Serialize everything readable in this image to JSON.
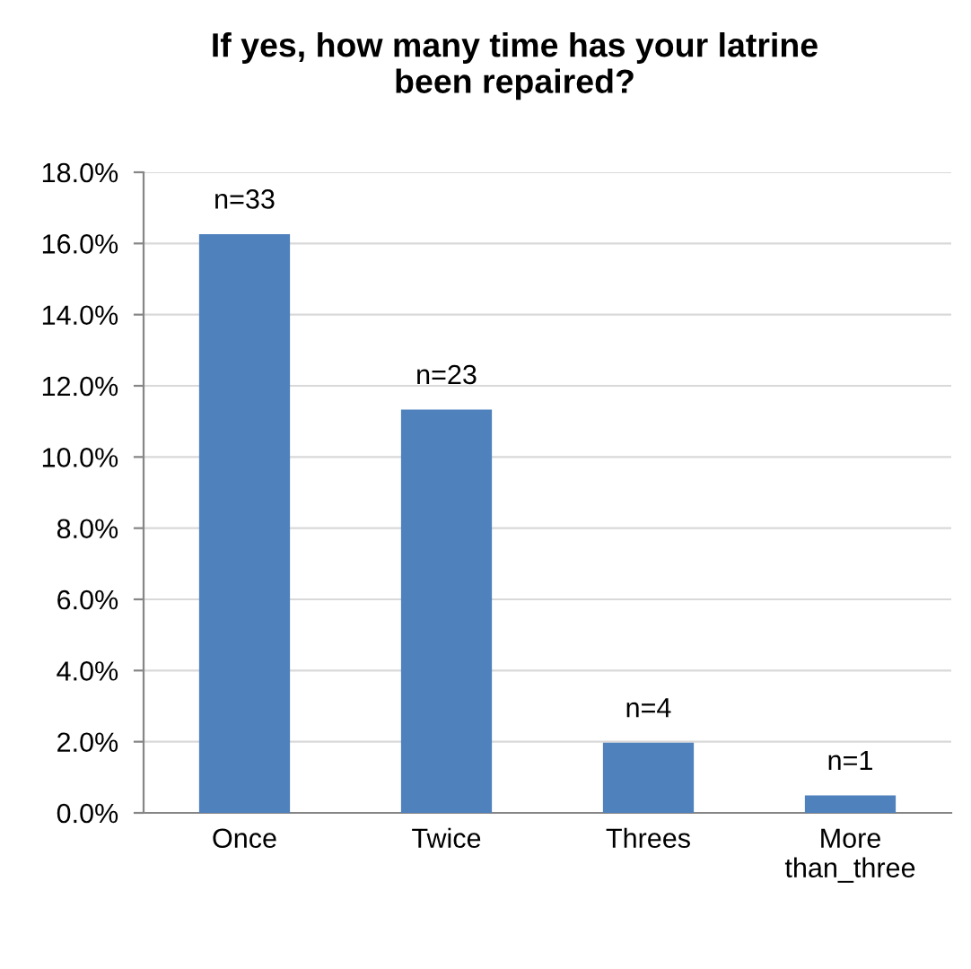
{
  "chart_data": {
    "type": "bar",
    "title": "If yes, how many time has your latrine\nbeen repaired?",
    "categories": [
      "Once",
      "Twice",
      "Threes",
      "More\nthan_three"
    ],
    "values": [
      16.26,
      11.33,
      1.97,
      0.49
    ],
    "color": "#4f81bd",
    "annotations": [
      {
        "text": "n=33",
        "x": "Once",
        "y": 16.26
      },
      {
        "text": "n=23",
        "x": "Twice",
        "y": 11.33
      },
      {
        "text": "n=4",
        "x": "Threes",
        "y": 1.97
      },
      {
        "text": "n=1",
        "x": "More\nthan_three",
        "y": 0.49
      }
    ],
    "ylim": [
      0,
      18
    ],
    "yticks": [
      {
        "value": 0,
        "label": "0.0%"
      },
      {
        "value": 2,
        "label": "2.0%"
      },
      {
        "value": 4,
        "label": "4.0%"
      },
      {
        "value": 6,
        "label": "6.0%"
      },
      {
        "value": 8,
        "label": "8.0%"
      },
      {
        "value": 10,
        "label": "10.0%"
      },
      {
        "value": 12,
        "label": "12.0%"
      },
      {
        "value": 14,
        "label": "14.0%"
      },
      {
        "value": 16,
        "label": "16.0%"
      },
      {
        "value": 18,
        "label": "18.0%"
      }
    ],
    "grid": "y",
    "legend": false
  }
}
